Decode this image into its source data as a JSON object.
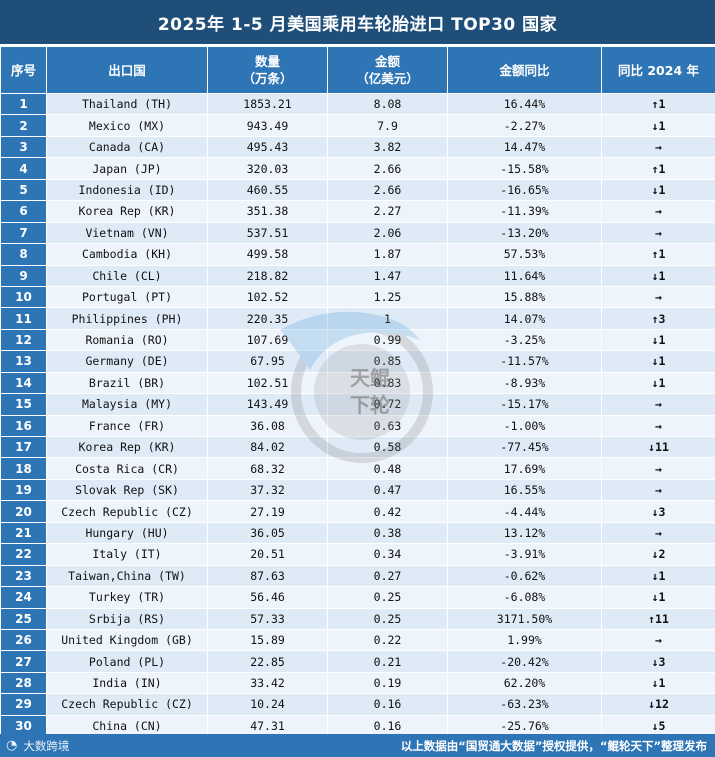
{
  "title": "2025年 1-5 月美国乘用车轮胎进口 TOP30 国家",
  "headers": {
    "rank": "序号",
    "country": "出口国",
    "qty_line1": "数量",
    "qty_line2": "（万条）",
    "amt_line1": "金额",
    "amt_line2": "（亿美元）",
    "yoy": "金额同比",
    "vs2024": "同比 2024 年"
  },
  "rows": [
    {
      "rank": "1",
      "country": "Thailand (TH)",
      "qty": "1853.21",
      "amt": "8.08",
      "yoy": "16.44%",
      "chg": "↑1",
      "dir": "up"
    },
    {
      "rank": "2",
      "country": "Mexico (MX)",
      "qty": "943.49",
      "amt": "7.9",
      "yoy": "-2.27%",
      "chg": "↓1",
      "dir": "down"
    },
    {
      "rank": "3",
      "country": "Canada (CA)",
      "qty": "495.43",
      "amt": "3.82",
      "yoy": "14.47%",
      "chg": "→",
      "dir": "same"
    },
    {
      "rank": "4",
      "country": "Japan (JP)",
      "qty": "320.03",
      "amt": "2.66",
      "yoy": "-15.58%",
      "chg": "↑1",
      "dir": "up"
    },
    {
      "rank": "5",
      "country": "Indonesia (ID)",
      "qty": "460.55",
      "amt": "2.66",
      "yoy": "-16.65%",
      "chg": "↓1",
      "dir": "down"
    },
    {
      "rank": "6",
      "country": "Korea Rep (KR)",
      "qty": "351.38",
      "amt": "2.27",
      "yoy": "-11.39%",
      "chg": "→",
      "dir": "same"
    },
    {
      "rank": "7",
      "country": "Vietnam (VN)",
      "qty": "537.51",
      "amt": "2.06",
      "yoy": "-13.20%",
      "chg": "→",
      "dir": "same"
    },
    {
      "rank": "8",
      "country": "Cambodia (KH)",
      "qty": "499.58",
      "amt": "1.87",
      "yoy": "57.53%",
      "chg": "↑1",
      "dir": "up"
    },
    {
      "rank": "9",
      "country": "Chile (CL)",
      "qty": "218.82",
      "amt": "1.47",
      "yoy": "11.64%",
      "chg": "↓1",
      "dir": "down"
    },
    {
      "rank": "10",
      "country": "Portugal (PT)",
      "qty": "102.52",
      "amt": "1.25",
      "yoy": "15.88%",
      "chg": "→",
      "dir": "same"
    },
    {
      "rank": "11",
      "country": "Philippines (PH)",
      "qty": "220.35",
      "amt": "1",
      "yoy": "14.07%",
      "chg": "↑3",
      "dir": "up"
    },
    {
      "rank": "12",
      "country": "Romania (RO)",
      "qty": "107.69",
      "amt": "0.99",
      "yoy": "-3.25%",
      "chg": "↓1",
      "dir": "down"
    },
    {
      "rank": "13",
      "country": "Germany (DE)",
      "qty": "67.95",
      "amt": "0.85",
      "yoy": "-11.57%",
      "chg": "↓1",
      "dir": "down"
    },
    {
      "rank": "14",
      "country": "Brazil (BR)",
      "qty": "102.51",
      "amt": "0.83",
      "yoy": "-8.93%",
      "chg": "↓1",
      "dir": "down"
    },
    {
      "rank": "15",
      "country": "Malaysia (MY)",
      "qty": "143.49",
      "amt": "0.72",
      "yoy": "-15.17%",
      "chg": "→",
      "dir": "same"
    },
    {
      "rank": "16",
      "country": "France (FR)",
      "qty": "36.08",
      "amt": "0.63",
      "yoy": "-1.00%",
      "chg": "→",
      "dir": "same"
    },
    {
      "rank": "17",
      "country": "Korea Rep (KR)",
      "qty": "84.02",
      "amt": "0.58",
      "yoy": "-77.45%",
      "chg": "↓11",
      "dir": "down"
    },
    {
      "rank": "18",
      "country": "Costa Rica (CR)",
      "qty": "68.32",
      "amt": "0.48",
      "yoy": "17.69%",
      "chg": "→",
      "dir": "same"
    },
    {
      "rank": "19",
      "country": "Slovak Rep (SK)",
      "qty": "37.32",
      "amt": "0.47",
      "yoy": "16.55%",
      "chg": "→",
      "dir": "same"
    },
    {
      "rank": "20",
      "country": "Czech Republic (CZ)",
      "qty": "27.19",
      "amt": "0.42",
      "yoy": "-4.44%",
      "chg": "↓3",
      "dir": "down"
    },
    {
      "rank": "21",
      "country": "Hungary (HU)",
      "qty": "36.05",
      "amt": "0.38",
      "yoy": "13.12%",
      "chg": "→",
      "dir": "same"
    },
    {
      "rank": "22",
      "country": "Italy (IT)",
      "qty": "20.51",
      "amt": "0.34",
      "yoy": "-3.91%",
      "chg": "↓2",
      "dir": "down"
    },
    {
      "rank": "23",
      "country": "Taiwan,China (TW)",
      "qty": "87.63",
      "amt": "0.27",
      "yoy": "-0.62%",
      "chg": "↓1",
      "dir": "down"
    },
    {
      "rank": "24",
      "country": "Turkey (TR)",
      "qty": "56.46",
      "amt": "0.25",
      "yoy": "-6.08%",
      "chg": "↓1",
      "dir": "down"
    },
    {
      "rank": "25",
      "country": "Srbija (RS)",
      "qty": "57.33",
      "amt": "0.25",
      "yoy": "3171.50%",
      "chg": "↑11",
      "dir": "up"
    },
    {
      "rank": "26",
      "country": "United Kingdom (GB)",
      "qty": "15.89",
      "amt": "0.22",
      "yoy": "1.99%",
      "chg": "→",
      "dir": "same"
    },
    {
      "rank": "27",
      "country": "Poland (PL)",
      "qty": "22.85",
      "amt": "0.21",
      "yoy": "-20.42%",
      "chg": "↓3",
      "dir": "down"
    },
    {
      "rank": "28",
      "country": "India (IN)",
      "qty": "33.42",
      "amt": "0.19",
      "yoy": "62.20%",
      "chg": "↓1",
      "dir": "down"
    },
    {
      "rank": "29",
      "country": "Czech Republic (CZ)",
      "qty": "10.24",
      "amt": "0.16",
      "yoy": "-63.23%",
      "chg": "↓12",
      "dir": "down"
    },
    {
      "rank": "30",
      "country": "China (CN)",
      "qty": "47.31",
      "amt": "0.16",
      "yoy": "-25.76%",
      "chg": "↓5",
      "dir": "down"
    }
  ],
  "footer": {
    "brand": "大数跨境",
    "note": "以上数据由“国贸通大数据”授权提供，“鲲轮天下”整理发布"
  },
  "watermark": {
    "text1": "天鲲",
    "text2": "下轮"
  },
  "colors": {
    "header_dark": "#1f4e79",
    "header": "#2e75b6",
    "row_odd": "#deebf7",
    "row_even": "#eef4fb",
    "up": "#c00000",
    "down": "#2e9a3a",
    "same": "#1f4fbf"
  }
}
